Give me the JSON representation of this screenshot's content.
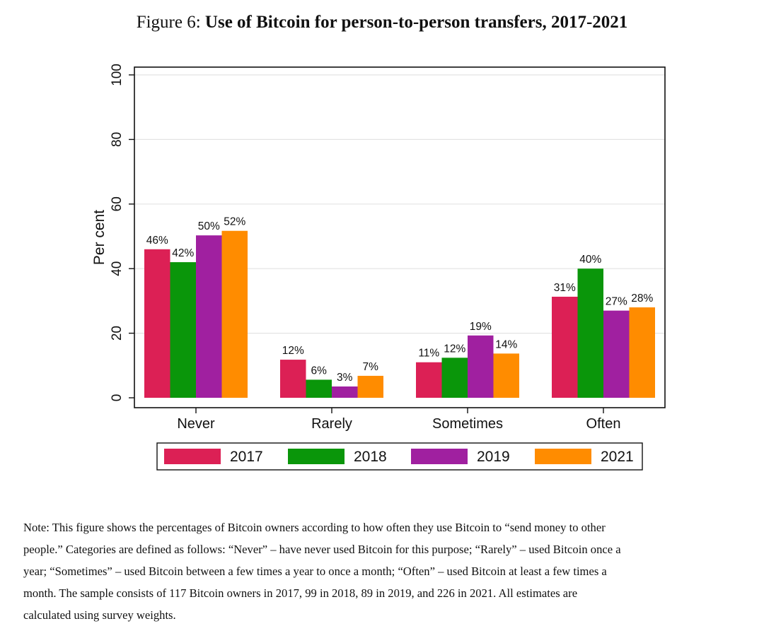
{
  "figure": {
    "prefix": "Figure 6:",
    "title": "Use of Bitcoin for person-to-person transfers, 2017-2021"
  },
  "chart_data": {
    "type": "bar",
    "categories": [
      "Never",
      "Rarely",
      "Sometimes",
      "Often"
    ],
    "series": [
      {
        "name": "2017",
        "color": "#dc2055",
        "values": [
          46,
          11.8,
          11,
          31.3
        ],
        "labels": [
          "46%",
          "12%",
          "11%",
          "31%"
        ]
      },
      {
        "name": "2018",
        "color": "#0a960a",
        "values": [
          42,
          5.6,
          12.4,
          40
        ],
        "labels": [
          "42%",
          "6%",
          "12%",
          "40%"
        ]
      },
      {
        "name": "2019",
        "color": "#a020a0",
        "values": [
          50.3,
          3.5,
          19.3,
          27
        ],
        "labels": [
          "50%",
          "3%",
          "19%",
          "27%"
        ]
      },
      {
        "name": "2021",
        "color": "#ff8c00",
        "values": [
          51.7,
          6.8,
          13.7,
          28
        ],
        "labels": [
          "52%",
          "7%",
          "14%",
          "28%"
        ]
      }
    ],
    "ylabel": "Per cent",
    "xlabel": "",
    "ylim": [
      0,
      100
    ],
    "yticks": [
      0,
      20,
      40,
      60,
      80,
      100
    ],
    "grid": true,
    "legend_position": "bottom"
  },
  "note": {
    "lines": [
      "Note: This figure shows the percentages of Bitcoin owners according to how often they use Bitcoin to “send money to other",
      "people.” Categories are defined as follows: “Never” – have never used Bitcoin for this purpose; “Rarely” – used Bitcoin once a",
      "year; “Sometimes” – used Bitcoin between a few times a year to once a month; “Often” – used Bitcoin at least a few times a",
      "month. The sample consists of 117 Bitcoin owners in 2017, 99 in 2018, 89 in 2019, and 226 in 2021. All estimates are",
      "calculated using survey weights."
    ]
  }
}
